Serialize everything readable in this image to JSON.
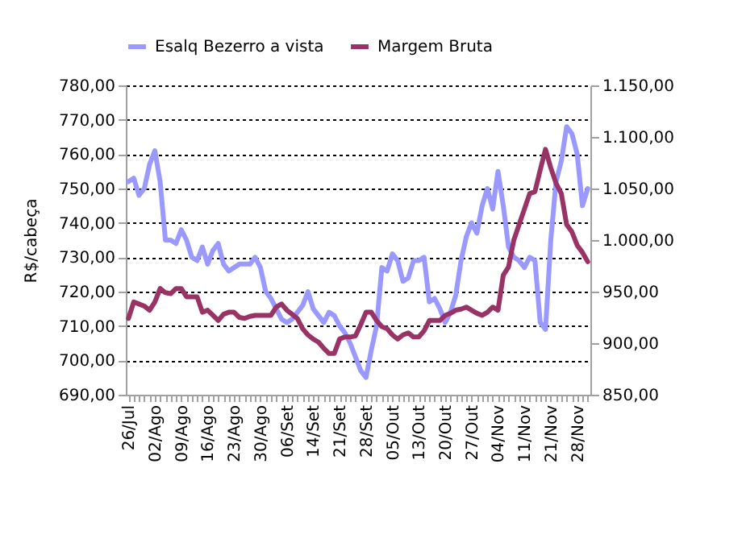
{
  "chart_data": {
    "type": "line",
    "ylabel": "R$/cabeça",
    "categories": [
      "26/Jul",
      null,
      null,
      null,
      null,
      "02/Ago",
      null,
      null,
      null,
      null,
      "09/Ago",
      null,
      null,
      null,
      null,
      "16/Ago",
      null,
      null,
      null,
      null,
      "23/Ago",
      null,
      null,
      null,
      null,
      "30/Ago",
      null,
      null,
      null,
      null,
      "06/Set",
      null,
      null,
      null,
      null,
      "14/Set",
      null,
      null,
      null,
      null,
      "21/Set",
      null,
      null,
      null,
      null,
      "28/Set",
      null,
      null,
      null,
      null,
      "05/Out",
      null,
      null,
      null,
      null,
      "13/Out",
      null,
      null,
      null,
      null,
      "20/Out",
      null,
      null,
      null,
      null,
      "27/Out",
      null,
      null,
      null,
      null,
      "04/Nov",
      null,
      null,
      null,
      null,
      "11/Nov",
      null,
      null,
      null,
      null,
      "21/Nov",
      null,
      null,
      null,
      null,
      "28/Nov",
      null,
      null
    ],
    "series": [
      {
        "name": "Esalq Bezerro a vista",
        "color": "#9999ff",
        "values": [
          752,
          753,
          748,
          750,
          757,
          761,
          752,
          735,
          735,
          734,
          738,
          735,
          730,
          729,
          733,
          728,
          732,
          734,
          728,
          726,
          727,
          728,
          728,
          728,
          730,
          727,
          720,
          718,
          715,
          712,
          711,
          712,
          714,
          716,
          720,
          715,
          713,
          711,
          714,
          713,
          710,
          708,
          705,
          701,
          697,
          695,
          703,
          710,
          727,
          726,
          731,
          729,
          723,
          724,
          729,
          729,
          730,
          717,
          718,
          715,
          711,
          714,
          719,
          729,
          736,
          740,
          737,
          745,
          750,
          744,
          755,
          745,
          733,
          730,
          729,
          727,
          730,
          729,
          711,
          709,
          735,
          752,
          758,
          768,
          766,
          760,
          745,
          750
        ]
      },
      {
        "name": "Margem Bruta",
        "color": "#993366",
        "axis": "y2",
        "values": [
          924,
          940,
          938,
          936,
          932,
          940,
          953,
          949,
          948,
          953,
          953,
          945,
          945,
          945,
          930,
          932,
          927,
          922,
          928,
          930,
          930,
          925,
          924,
          926,
          927,
          927,
          927,
          927,
          935,
          938,
          932,
          928,
          924,
          914,
          908,
          904,
          901,
          895,
          890,
          890,
          904,
          906,
          906,
          907,
          918,
          930,
          930,
          922,
          916,
          914,
          908,
          904,
          908,
          910,
          906,
          906,
          912,
          922,
          922,
          922,
          927,
          929,
          932,
          933,
          935,
          932,
          929,
          927,
          930,
          935,
          932,
          966,
          974,
          1000,
          1015,
          1030,
          1045,
          1047,
          1068,
          1088,
          1070,
          1055,
          1045,
          1015,
          1008,
          995,
          988,
          979
        ]
      }
    ],
    "ylim": [
      690,
      780
    ],
    "yticks": [
      {
        "value": 690,
        "label": "690,00"
      },
      {
        "value": 700,
        "label": "700,00"
      },
      {
        "value": 710,
        "label": "710,00"
      },
      {
        "value": 720,
        "label": "720,00"
      },
      {
        "value": 730,
        "label": "730,00"
      },
      {
        "value": 740,
        "label": "740,00"
      },
      {
        "value": 750,
        "label": "750,00"
      },
      {
        "value": 760,
        "label": "760,00"
      },
      {
        "value": 770,
        "label": "770,00"
      },
      {
        "value": 780,
        "label": "780,00"
      }
    ],
    "y2lim": [
      850,
      1150
    ],
    "y2ticks": [
      {
        "value": 850,
        "label": "850,00"
      },
      {
        "value": 900,
        "label": "900,00"
      },
      {
        "value": 950,
        "label": "950,00"
      },
      {
        "value": 1000,
        "label": "1.000,00"
      },
      {
        "value": 1050,
        "label": "1.050,00"
      },
      {
        "value": 1100,
        "label": "1.100,00"
      },
      {
        "value": 1150,
        "label": "1.150,00"
      }
    ],
    "grid": "y",
    "legend": "top",
    "marker": "none",
    "line_style": "solid"
  }
}
